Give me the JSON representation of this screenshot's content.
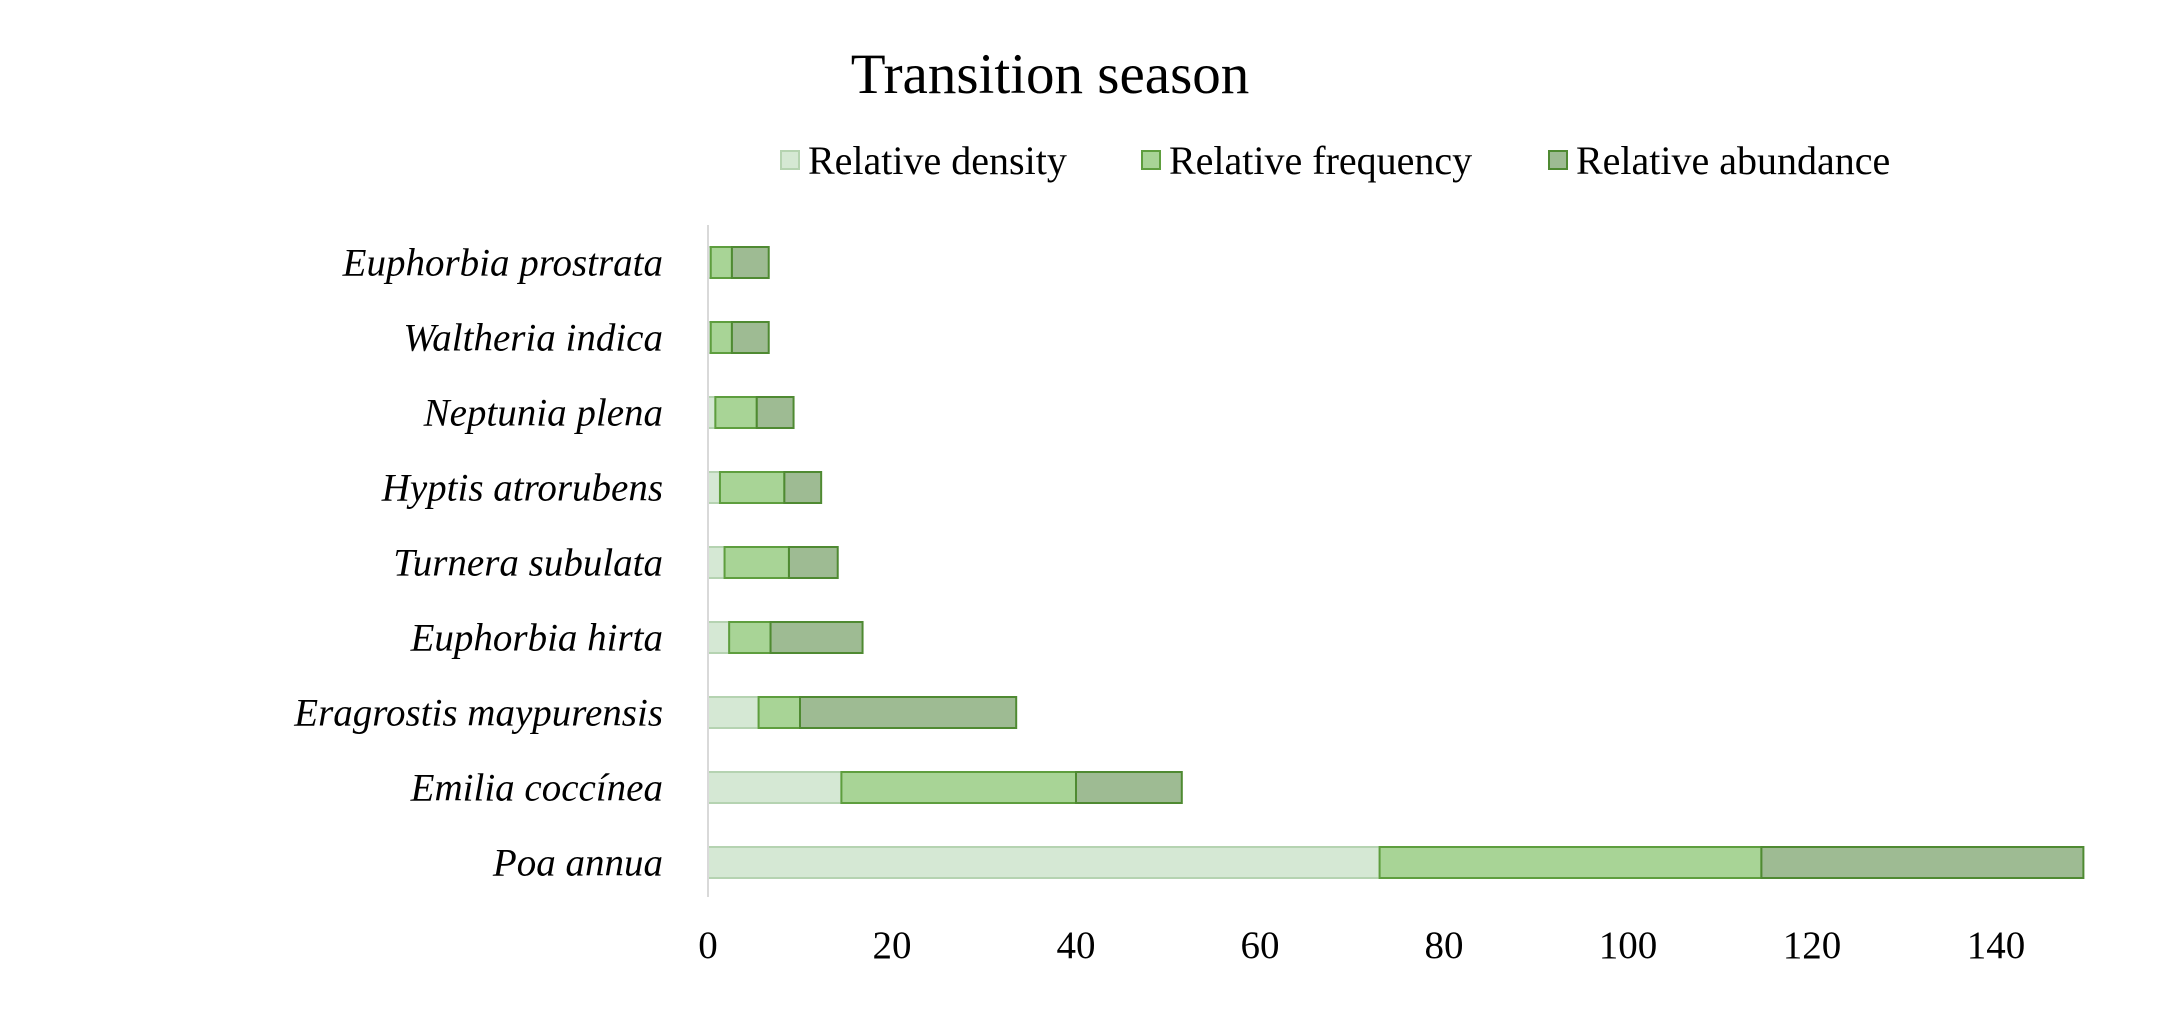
{
  "chart_data": {
    "type": "bar",
    "orientation": "horizontal",
    "stacked": true,
    "title": "Transition season",
    "categories": [
      "Poa annua",
      "Emilia coccínea",
      "Eragrostis maypurensis",
      "Euphorbia hirta",
      "Turnera subulata",
      "Hyptis atrorubens",
      "Neptunia plena",
      "Waltheria indica",
      "Euphorbia prostrata"
    ],
    "series": [
      {
        "name": "Relative density",
        "values": [
          73.0,
          14.5,
          5.5,
          2.3,
          1.8,
          1.3,
          0.8,
          0.3,
          0.3
        ],
        "color": "#d5e8d4",
        "border": "#b5d3b1"
      },
      {
        "name": "Relative frequency",
        "values": [
          41.5,
          25.5,
          4.5,
          4.5,
          7.0,
          7.0,
          4.5,
          2.3,
          2.3
        ],
        "color": "#a8d496",
        "border": "#5e9e3e"
      },
      {
        "name": "Relative abundance",
        "values": [
          35.0,
          11.5,
          23.5,
          10.0,
          5.3,
          4.0,
          4.0,
          4.0,
          4.0
        ],
        "color": "#9ebb93",
        "border": "#4f8a32"
      }
    ],
    "xlim": [
      0,
      150
    ],
    "xticks": [
      0,
      20,
      40,
      60,
      80,
      100,
      120,
      140
    ],
    "legend_position": "top",
    "grid": false
  }
}
